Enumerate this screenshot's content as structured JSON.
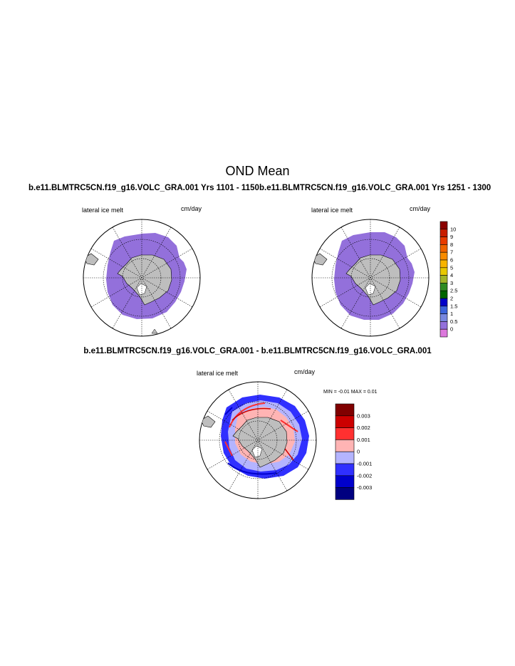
{
  "title": "OND Mean",
  "panels": [
    {
      "title": "b.e11.BLMTRC5CN.f19_g16.VOLC_GRA.001  Yrs 1101 - 1150",
      "left_label": "lateral ice melt",
      "right_label": "cm/day"
    },
    {
      "title": "b.e11.BLMTRC5CN.f19_g16.VOLC_GRA.001  Yrs 1251 - 1300",
      "left_label": "lateral ice melt",
      "right_label": "cm/day"
    },
    {
      "title": "b.e11.BLMTRC5CN.f19_g16.VOLC_GRA.001 - b.e11.BLMTRC5CN.f19_g16.VOLC_GRA.001",
      "left_label": "lateral ice melt",
      "right_label": "cm/day",
      "minmax": "MIN =  -0.01 MAX =   0.01"
    }
  ],
  "colorbar_top": {
    "labels": [
      "10",
      "9",
      "8",
      "7",
      "6",
      "5",
      "4",
      "3",
      "2.5",
      "2",
      "1.5",
      "1",
      "0.5",
      "0"
    ],
    "colors": [
      "#8b0000",
      "#c81e00",
      "#e83c00",
      "#f06400",
      "#f88c00",
      "#f8b400",
      "#e8c800",
      "#a0b428",
      "#2e8b22",
      "#006400",
      "#0000c8",
      "#3c64dc",
      "#7888e0",
      "#9370db",
      "#dc78dc"
    ]
  },
  "colorbar_diff": {
    "labels": [
      "0.003",
      "0.002",
      "0.001",
      "0",
      "-0.001",
      "-0.002",
      "-0.003"
    ],
    "colors": [
      "#800000",
      "#cc0000",
      "#ff3030",
      "#ffb4b4",
      "#b4b4ff",
      "#3030ff",
      "#0000cc",
      "#000080"
    ]
  },
  "colors": {
    "ice": "#9370db",
    "land": "#bebebe"
  }
}
